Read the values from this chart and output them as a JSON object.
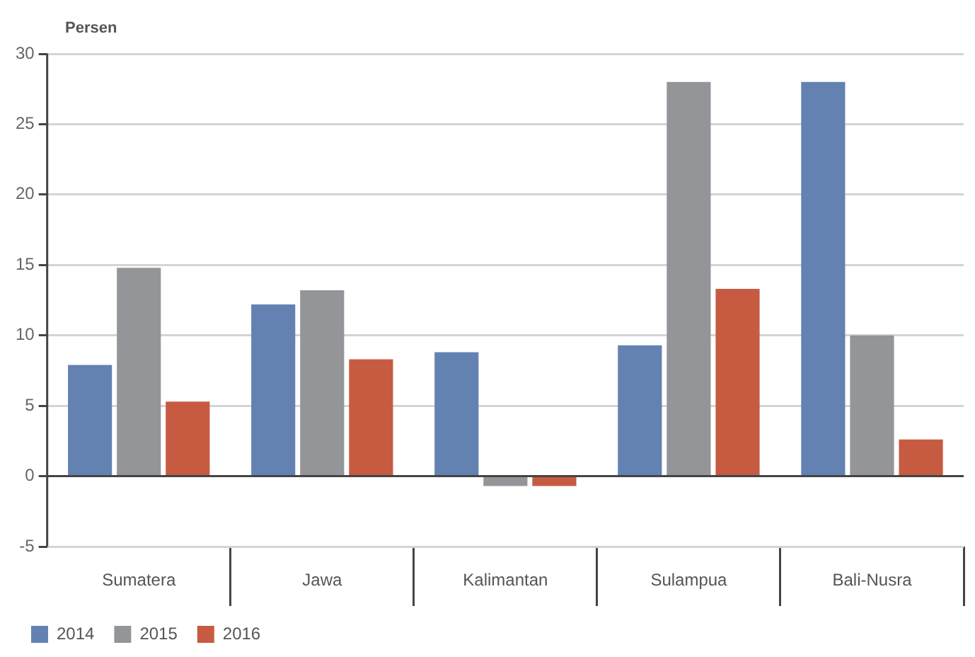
{
  "chart_data": {
    "type": "bar",
    "ylabel": "Persen",
    "categories": [
      "Sumatera",
      "Jawa",
      "Kalimantan",
      "Sulampua",
      "Bali-Nusra"
    ],
    "series": [
      {
        "name": "2014",
        "color": "#6382b1",
        "values": [
          7.9,
          12.2,
          8.8,
          9.3,
          28
        ]
      },
      {
        "name": "2015",
        "color": "#939598",
        "values": [
          14.8,
          13.2,
          -0.7,
          28,
          10
        ]
      },
      {
        "name": "2016",
        "color": "#c75b42",
        "values": [
          5.3,
          8.3,
          -0.7,
          13.3,
          2.6
        ]
      }
    ],
    "ylim": [
      -5,
      30
    ],
    "yticks": [
      -5,
      0,
      5,
      10,
      15,
      20,
      25,
      30
    ],
    "grid": "y",
    "legend": "bottom left"
  }
}
